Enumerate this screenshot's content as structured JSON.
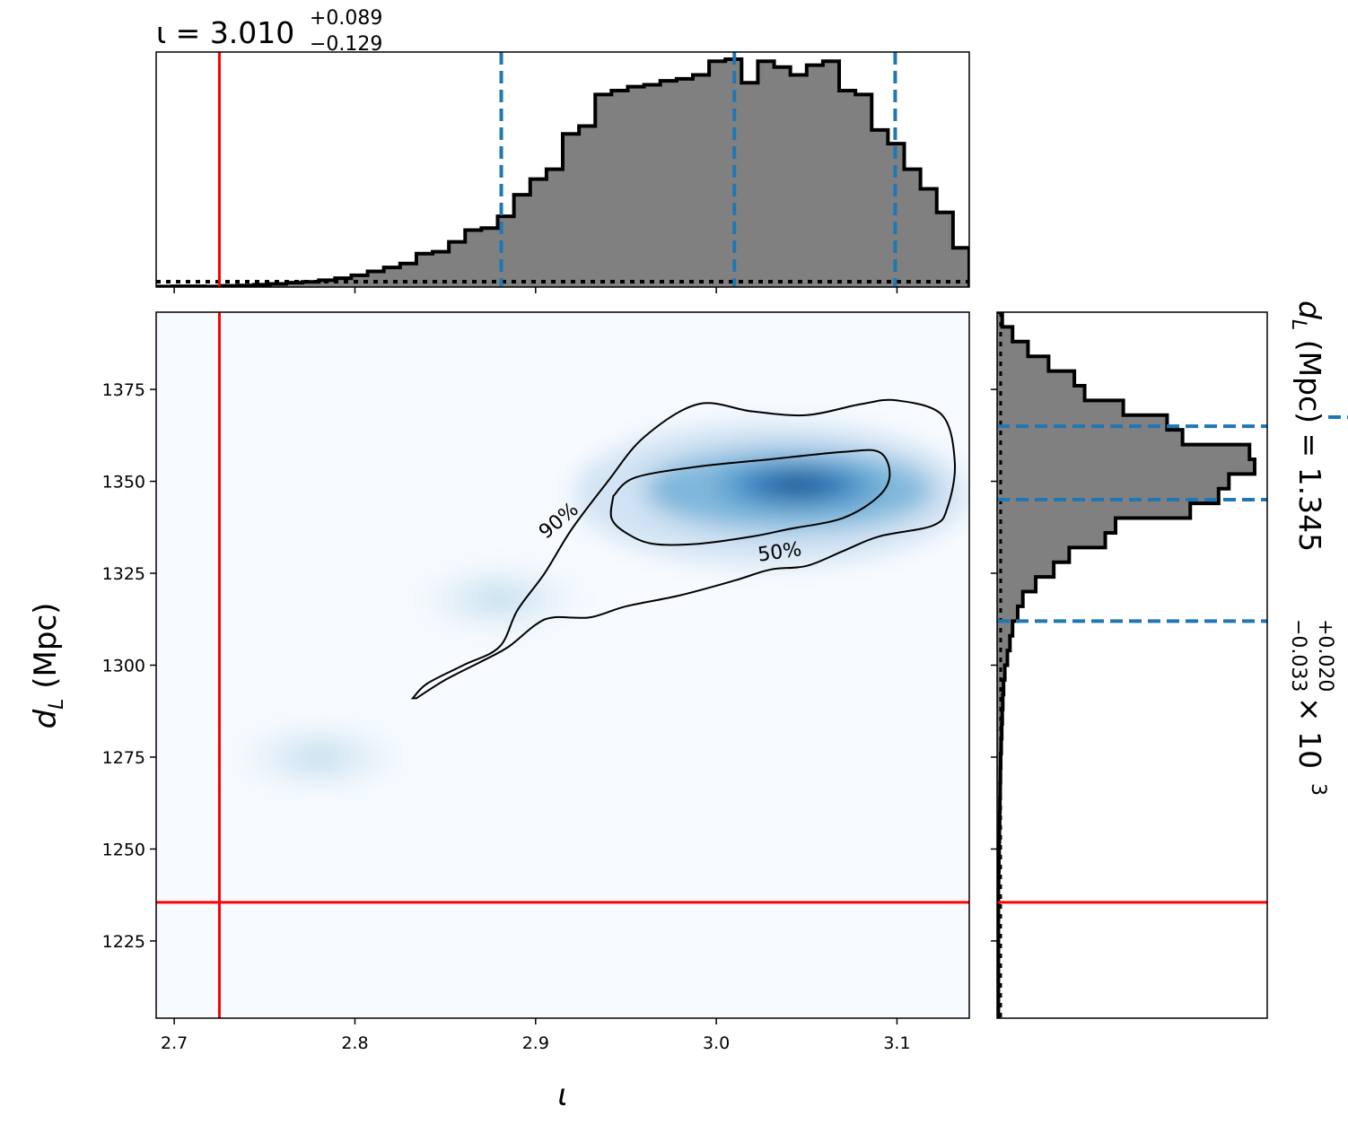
{
  "chart_data": [
    {
      "type": "histogram",
      "panel": "top-marginal",
      "title": {
        "symbol": "ι",
        "value": "3.010",
        "plus": "+0.089",
        "minus": "−0.129"
      },
      "parameter": "ι",
      "xlim": [
        2.69,
        3.14
      ],
      "bin_edges_start": 2.69,
      "bin_width": 0.009,
      "densities": [
        0.003,
        0.004,
        0.004,
        0.003,
        0.006,
        0.008,
        0.012,
        0.016,
        0.022,
        0.026,
        0.035,
        0.045,
        0.06,
        0.08,
        0.1,
        0.12,
        0.17,
        0.18,
        0.23,
        0.29,
        0.3,
        0.36,
        0.47,
        0.55,
        0.6,
        0.78,
        0.82,
        0.98,
        1.0,
        1.02,
        1.03,
        1.05,
        1.06,
        1.08,
        1.15,
        1.16,
        1.04,
        1.15,
        1.12,
        1.08,
        1.13,
        1.15,
        1.0,
        0.98,
        0.8,
        0.73,
        0.6,
        0.5,
        0.38,
        0.2
      ],
      "prior_line": "dotted",
      "credible_interval": {
        "lower": 2.881,
        "median": 3.01,
        "upper": 3.099
      },
      "injected_value": 2.725,
      "colors": {
        "fill": "#808080",
        "edge": "#000000",
        "ci": "#1f77b4",
        "truth": "#ff0000"
      }
    },
    {
      "type": "heatmap",
      "panel": "joint",
      "xlabel": "ι",
      "ylabel": "d_L (Mpc)",
      "xlim": [
        2.69,
        3.14
      ],
      "ylim": [
        1204,
        1396
      ],
      "xticks": [
        "2.7",
        "2.8",
        "2.9",
        "3.0",
        "3.1"
      ],
      "yticks": [
        "1225",
        "1250",
        "1275",
        "1300",
        "1325",
        "1350",
        "1375"
      ],
      "density_peak": {
        "x": 3.045,
        "y": 1349
      },
      "contours": [
        {
          "label": "50%",
          "label_at": {
            "x": 3.035,
            "y": 1331
          }
        },
        {
          "label": "90%",
          "label_at": {
            "x": 2.915,
            "y": 1338
          }
        }
      ],
      "injected": {
        "x": 2.725,
        "y": 1235.5
      },
      "colors": {
        "low": "#f7fbff",
        "high": "#08306b",
        "contour": "#000000",
        "truth": "#ff0000"
      }
    },
    {
      "type": "histogram",
      "panel": "right-marginal",
      "parameter": "d_L (Mpc)",
      "title": {
        "lhs": "d_L (Mpc) =",
        "value": "1.345",
        "plus": "+0.020",
        "minus": "−0.033",
        "multiplier": "× 10",
        "exponent": "3"
      },
      "ylim": [
        1204,
        1396
      ],
      "bin_edges_start": 1204,
      "bin_width": 4,
      "densities": [
        0.005,
        0.005,
        0.005,
        0.005,
        0.005,
        0.005,
        0.005,
        0.005,
        0.005,
        0.006,
        0.007,
        0.008,
        0.009,
        0.01,
        0.011,
        0.012,
        0.013,
        0.014,
        0.016,
        0.018,
        0.02,
        0.022,
        0.025,
        0.03,
        0.04,
        0.05,
        0.06,
        0.08,
        0.1,
        0.15,
        0.22,
        0.28,
        0.42,
        0.46,
        0.75,
        0.86,
        0.9,
        1.0,
        0.98,
        0.72,
        0.66,
        0.49,
        0.34,
        0.3,
        0.2,
        0.12,
        0.06,
        0.02
      ],
      "credible_interval": {
        "lower": 1312,
        "median": 1345,
        "upper": 1365
      },
      "injected_value": 1235.5,
      "colors": {
        "fill": "#808080",
        "edge": "#000000",
        "ci": "#1f77b4",
        "truth": "#ff0000"
      }
    }
  ]
}
